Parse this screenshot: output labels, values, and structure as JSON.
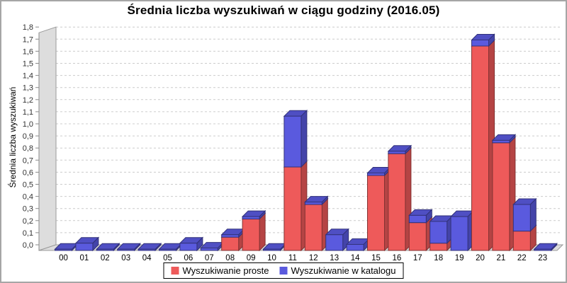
{
  "title": "Średnia liczba wyszukiwań w ciągu godziny (2016.05)",
  "legend": {
    "items": [
      {
        "label": "Wyszukiwanie proste",
        "color": "#ee5a5a"
      },
      {
        "label": "Wyszukiwanie w katalogu",
        "color": "#5a5ade"
      }
    ]
  },
  "chart_data": {
    "type": "bar",
    "stacked": true,
    "style": "3d",
    "title": "Średnia liczba wyszukiwań w ciągu godziny (2016.05)",
    "xlabel": "",
    "ylabel": "Średnia liczba wyszukiwań",
    "ylim": [
      0,
      1.8
    ],
    "ytick_step": 0.1,
    "ytick_labels": [
      "0,0",
      "0,1",
      "0,2",
      "0,3",
      "0,4",
      "0,5",
      "0,6",
      "0,7",
      "0,8",
      "0,9",
      "1,0",
      "1,1",
      "1,2",
      "1,3",
      "1,4",
      "1,5",
      "1,6",
      "1,7",
      "1,8"
    ],
    "grid": "horizontal dashed",
    "legend_position": "bottom",
    "categories": [
      "00",
      "01",
      "02",
      "03",
      "04",
      "05",
      "06",
      "07",
      "08",
      "09",
      "10",
      "11",
      "12",
      "13",
      "14",
      "15",
      "16",
      "17",
      "18",
      "19",
      "20",
      "21",
      "22",
      "23"
    ],
    "series": [
      {
        "name": "Wyszukiwanie proste",
        "color": "#ee5a5a",
        "values": [
          0,
          0,
          0,
          0,
          0,
          0,
          0,
          0,
          0.11,
          0.26,
          0,
          0.69,
          0.38,
          0,
          0,
          0.62,
          0.8,
          0.23,
          0.06,
          0,
          1.69,
          0.89,
          0.16,
          0
        ]
      },
      {
        "name": "Wyszukiwanie w katalogu",
        "color": "#5a5ade",
        "values": [
          0.01,
          0.06,
          0.01,
          0.01,
          0.01,
          0.01,
          0.06,
          0.02,
          0.02,
          0.02,
          0.01,
          0.42,
          0.02,
          0.13,
          0.05,
          0.02,
          0.02,
          0.06,
          0.18,
          0.28,
          0.05,
          0.02,
          0.22,
          0.01
        ]
      }
    ]
  }
}
